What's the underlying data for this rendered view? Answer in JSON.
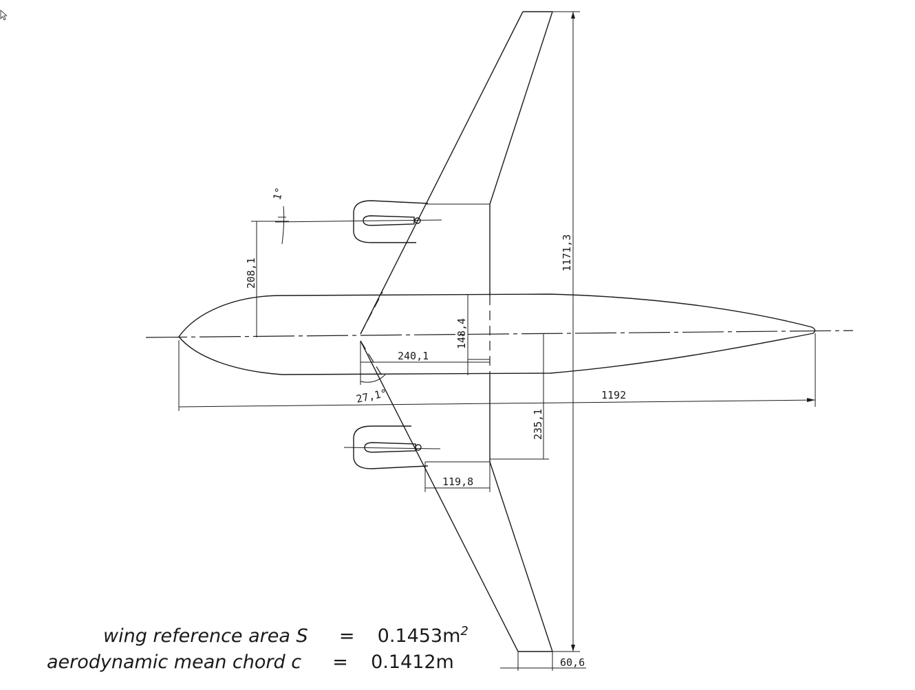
{
  "dimensions": {
    "fuselage_length": "1192",
    "wingspan": "1171,3",
    "engine_offset": "208,1",
    "fuselage_diameter": "148,4",
    "wing_root_offset": "240,1",
    "wing_aft_offset": "235,1",
    "engine_chord": "119,8",
    "tip_chord": "60,6",
    "engine_incidence": "1°",
    "sweep_angle": "27,1°"
  },
  "formulas": {
    "area_label": "wing reference area S",
    "area_eq": "=",
    "area_value": "0.1453m",
    "area_exp": "2",
    "chord_label": "aerodynamic mean chord c",
    "chord_eq": "=",
    "chord_value": "0.1412m"
  }
}
